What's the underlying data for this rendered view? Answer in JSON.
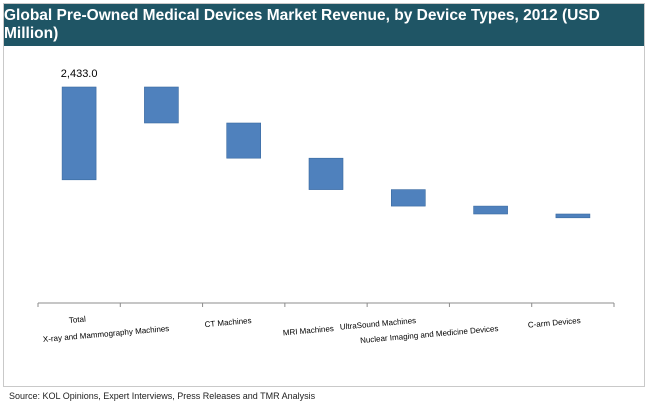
{
  "chart_data": {
    "type": "bar",
    "subtype": "waterfall",
    "title": "Global Pre-Owned Medical Devices Market Revenue, by Device Types, 2012 (USD Million)",
    "categories": [
      "Total",
      "X-ray and Mammography Machines",
      "CT Machines",
      "MRI Machines",
      "UltraSound Machines",
      "Nuclear Imaging and Medicine Devices",
      "C-arm Devices"
    ],
    "values": [
      2433.0,
      406,
      396,
      354,
      186,
      89,
      43
    ],
    "data_labels": [
      "2,433.0",
      "",
      "",
      "",
      "",
      "",
      ""
    ],
    "xlabel": "",
    "ylabel": "",
    "ylim": [
      0,
      2433.0
    ],
    "grid": false,
    "legend": "none",
    "bar_color": "#4f81bd"
  },
  "source": "Source:  KOL Opinions, Expert Interviews, Press Releases and TMR Analysis"
}
